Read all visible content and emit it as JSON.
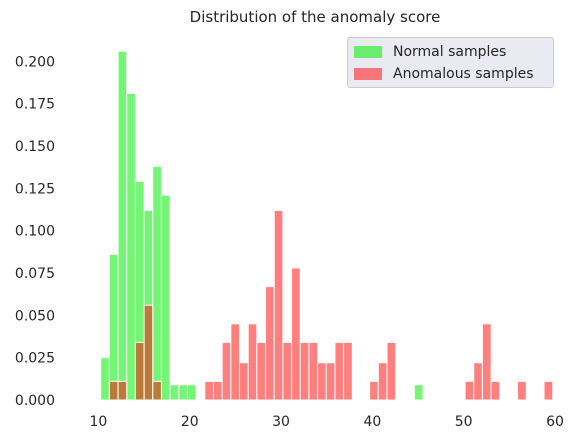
{
  "chart_data": {
    "type": "bar",
    "title": "Distribution of the anomaly score",
    "xlabel": "",
    "ylabel": "",
    "xlim": [
      8.2,
      60
    ],
    "ylim": [
      0,
      0.215
    ],
    "bin_width": 0.95,
    "grid": false,
    "legend_placement": "top-right",
    "x_ticks": [
      10,
      20,
      30,
      40,
      50,
      60
    ],
    "x_tick_labels": [
      "10",
      "20",
      "30",
      "40",
      "50",
      "60"
    ],
    "y_ticks": [
      0,
      0.025,
      0.05,
      0.075,
      0.1,
      0.125,
      0.15,
      0.175,
      0.2
    ],
    "y_tick_labels": [
      "0.000",
      "0.025",
      "0.050",
      "0.075",
      "0.100",
      "0.125",
      "0.150",
      "0.175",
      "0.200"
    ],
    "series": [
      {
        "name": "Normal samples",
        "color": "#00ee00",
        "opacity": 0.55,
        "x": [
          10.25,
          11.2,
          12.15,
          13.1,
          14.05,
          15.0,
          15.95,
          16.9,
          17.85,
          18.8,
          19.75,
          44.6
        ],
        "values": [
          0.025,
          0.086,
          0.206,
          0.181,
          0.129,
          0.112,
          0.138,
          0.121,
          0.009,
          0.009,
          0.009,
          0.009
        ]
      },
      {
        "name": "Anomalous samples",
        "color": "#ff0000",
        "opacity": 0.5,
        "x": [
          11.2,
          12.15,
          14.05,
          15.0,
          15.95,
          21.65,
          22.6,
          23.55,
          24.5,
          25.45,
          26.4,
          27.35,
          28.3,
          29.25,
          30.2,
          31.15,
          32.1,
          33.05,
          34.0,
          34.95,
          35.9,
          36.85,
          39.7,
          40.65,
          41.6,
          50.15,
          51.1,
          52.05,
          53.0,
          55.9,
          58.8
        ],
        "values": [
          0.011,
          0.011,
          0.034,
          0.056,
          0.011,
          0.011,
          0.011,
          0.034,
          0.045,
          0.022,
          0.045,
          0.034,
          0.067,
          0.112,
          0.034,
          0.078,
          0.034,
          0.034,
          0.022,
          0.022,
          0.034,
          0.034,
          0.011,
          0.022,
          0.034,
          0.011,
          0.022,
          0.045,
          0.011,
          0.011,
          0.011
        ]
      }
    ]
  }
}
